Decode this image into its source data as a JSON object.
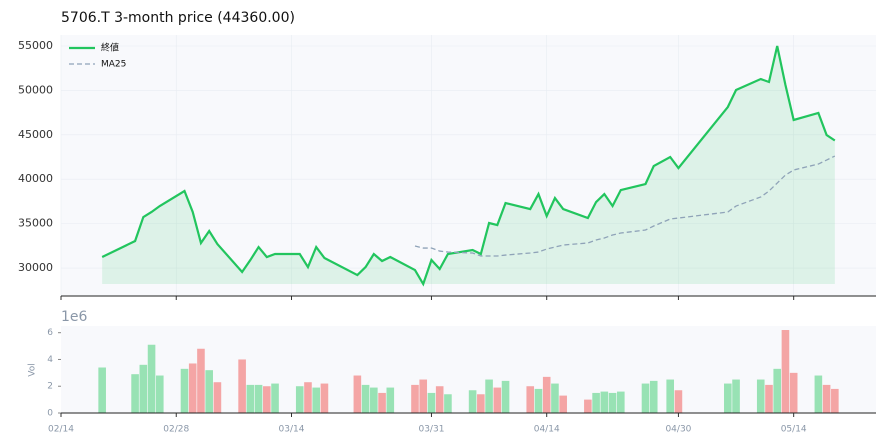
{
  "chart_data": {
    "type": "line",
    "title": "5706.T  3-month price (44360.00)",
    "x": [
      "02/19",
      "02/23",
      "02/24",
      "02/25",
      "02/26",
      "03/01",
      "03/02",
      "03/03",
      "03/04",
      "03/05",
      "03/08",
      "03/09",
      "03/10",
      "03/11",
      "03/12",
      "03/15",
      "03/16",
      "03/17",
      "03/18",
      "03/22",
      "03/23",
      "03/24",
      "03/25",
      "03/26",
      "03/29",
      "03/30",
      "03/31",
      "04/01",
      "04/02",
      "04/05",
      "04/06",
      "04/07",
      "04/08",
      "04/09",
      "04/12",
      "04/13",
      "04/14",
      "04/15",
      "04/16",
      "04/19",
      "04/20",
      "04/21",
      "04/22",
      "04/23",
      "04/26",
      "04/27",
      "04/29",
      "04/30",
      "05/06",
      "05/07",
      "05/10",
      "05/11",
      "05/12",
      "05/13",
      "05/14",
      "05/17",
      "05/18",
      "05/19"
    ],
    "xlim": [
      "02/14",
      "05/24"
    ],
    "xticks": [
      "02/14",
      "02/28",
      "03/14",
      "03/31",
      "04/14",
      "04/30",
      "05/14"
    ],
    "ylim": [
      26850,
      56240
    ],
    "yticks": [
      30000,
      35000,
      40000,
      45000,
      50000,
      55000
    ],
    "grid": true,
    "legend": "upper left",
    "fill": true,
    "series": [
      {
        "name": "終値",
        "color": "#22c55e",
        "values": [
          31240,
          33040,
          35740,
          36310,
          36980,
          38670,
          36310,
          32820,
          34170,
          32700,
          29550,
          30900,
          32360,
          31240,
          31580,
          31580,
          30110,
          32360,
          31130,
          29210,
          30110,
          31580,
          30790,
          31240,
          29770,
          28200,
          30900,
          29890,
          31580,
          32030,
          31580,
          35070,
          34840,
          37320,
          36640,
          38330,
          35860,
          37880,
          36640,
          35630,
          37430,
          38330,
          36980,
          38780,
          39460,
          41490,
          42500,
          41260,
          48130,
          50050,
          51280,
          50950,
          55000,
          50610,
          46670,
          47460,
          44980,
          44360
        ]
      },
      {
        "name": "MA25",
        "color": "#8fa3b8",
        "dashed": true,
        "values": [
          null,
          null,
          null,
          null,
          null,
          null,
          null,
          null,
          null,
          null,
          null,
          null,
          null,
          null,
          null,
          null,
          null,
          null,
          null,
          null,
          null,
          null,
          null,
          null,
          32480,
          32250,
          32250,
          31910,
          31800,
          31690,
          31350,
          31350,
          31350,
          31460,
          31690,
          31800,
          32140,
          32360,
          32590,
          32820,
          33150,
          33380,
          33720,
          33940,
          34280,
          34730,
          35520,
          35630,
          36310,
          36980,
          38000,
          38670,
          39570,
          40470,
          41040,
          41710,
          42160,
          42610
        ]
      }
    ],
    "volume": {
      "type": "bar",
      "ylabel": "Vol",
      "offset_text": "1e6",
      "ylim": [
        0,
        6.5
      ],
      "yticks": [
        0,
        2,
        4,
        6
      ],
      "values": [
        3.4,
        2.9,
        3.6,
        5.1,
        2.8,
        3.3,
        3.7,
        4.8,
        3.2,
        2.3,
        4.0,
        2.1,
        2.1,
        2.0,
        2.2,
        2.0,
        2.3,
        1.9,
        2.2,
        2.8,
        2.1,
        1.9,
        1.5,
        1.9,
        2.1,
        2.5,
        1.5,
        2.0,
        1.4,
        1.7,
        1.4,
        2.5,
        1.9,
        2.4,
        2.0,
        1.8,
        2.7,
        2.2,
        1.3,
        1.0,
        1.5,
        1.6,
        1.5,
        1.6,
        2.2,
        2.4,
        2.5,
        1.7,
        2.2,
        2.5,
        2.5,
        2.1,
        3.3,
        6.2,
        3.0,
        2.8,
        2.1,
        1.8
      ],
      "colors": [
        "#98e2b4",
        "#98e2b4",
        "#98e2b4",
        "#98e2b4",
        "#98e2b4",
        "#98e2b4",
        "#f4a5a5",
        "#f4a5a5",
        "#98e2b4",
        "#f4a5a5",
        "#f4a5a5",
        "#98e2b4",
        "#98e2b4",
        "#f4a5a5",
        "#98e2b4",
        "#98e2b4",
        "#f4a5a5",
        "#98e2b4",
        "#f4a5a5",
        "#f4a5a5",
        "#98e2b4",
        "#98e2b4",
        "#f4a5a5",
        "#98e2b4",
        "#f4a5a5",
        "#f4a5a5",
        "#98e2b4",
        "#f4a5a5",
        "#98e2b4",
        "#98e2b4",
        "#f4a5a5",
        "#98e2b4",
        "#f4a5a5",
        "#98e2b4",
        "#f4a5a5",
        "#98e2b4",
        "#f4a5a5",
        "#98e2b4",
        "#f4a5a5",
        "#f4a5a5",
        "#98e2b4",
        "#98e2b4",
        "#98e2b4",
        "#98e2b4",
        "#98e2b4",
        "#98e2b4",
        "#98e2b4",
        "#f4a5a5",
        "#98e2b4",
        "#98e2b4",
        "#98e2b4",
        "#f4a5a5",
        "#98e2b4",
        "#f4a5a5",
        "#f4a5a5",
        "#98e2b4",
        "#f4a5a5",
        "#f4a5a5"
      ]
    }
  }
}
